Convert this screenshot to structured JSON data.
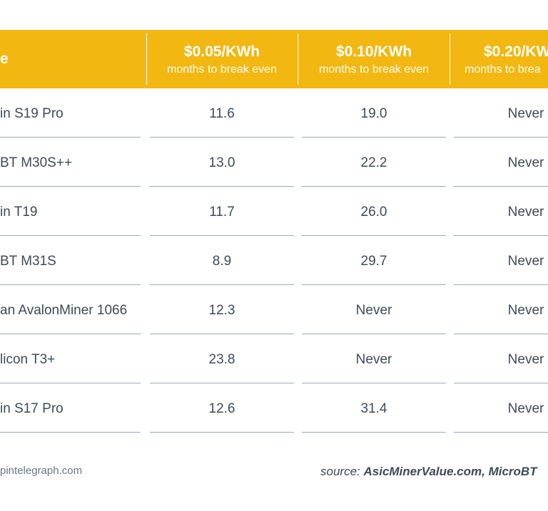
{
  "chart_data": {
    "type": "table",
    "columns": [
      {
        "header": "e",
        "subheader": ""
      },
      {
        "header": "$0.05/KWh",
        "subheader": "months to break even"
      },
      {
        "header": "$0.10/KWh",
        "subheader": "months to break even"
      },
      {
        "header": "$0.20/KW",
        "subheader": "months to  brea"
      }
    ],
    "rows": [
      {
        "name": "in S19 Pro",
        "values": [
          "11.6",
          "19.0",
          "Never"
        ]
      },
      {
        "name": "BT M30S++",
        "values": [
          "13.0",
          "22.2",
          "Never"
        ]
      },
      {
        "name": "in T19",
        "values": [
          "11.7",
          "26.0",
          "Never"
        ]
      },
      {
        "name": "BT M31S",
        "values": [
          "8.9",
          "29.7",
          "Never"
        ]
      },
      {
        "name": "an AvalonMiner 1066",
        "values": [
          "12.3",
          "Never",
          "Never"
        ]
      },
      {
        "name": "licon T3+",
        "values": [
          "23.8",
          "Never",
          "Never"
        ]
      },
      {
        "name": "in S17 Pro",
        "values": [
          "12.6",
          "31.4",
          "Never"
        ]
      }
    ]
  },
  "footer": {
    "site": "pintelegraph.com",
    "source_label": "source: ",
    "source_value": "AsicMinerValue.com, MicroBT"
  },
  "colors": {
    "header_bg": "#f3b712",
    "text": "#3e4a57",
    "rule": "#9aa9b6"
  }
}
